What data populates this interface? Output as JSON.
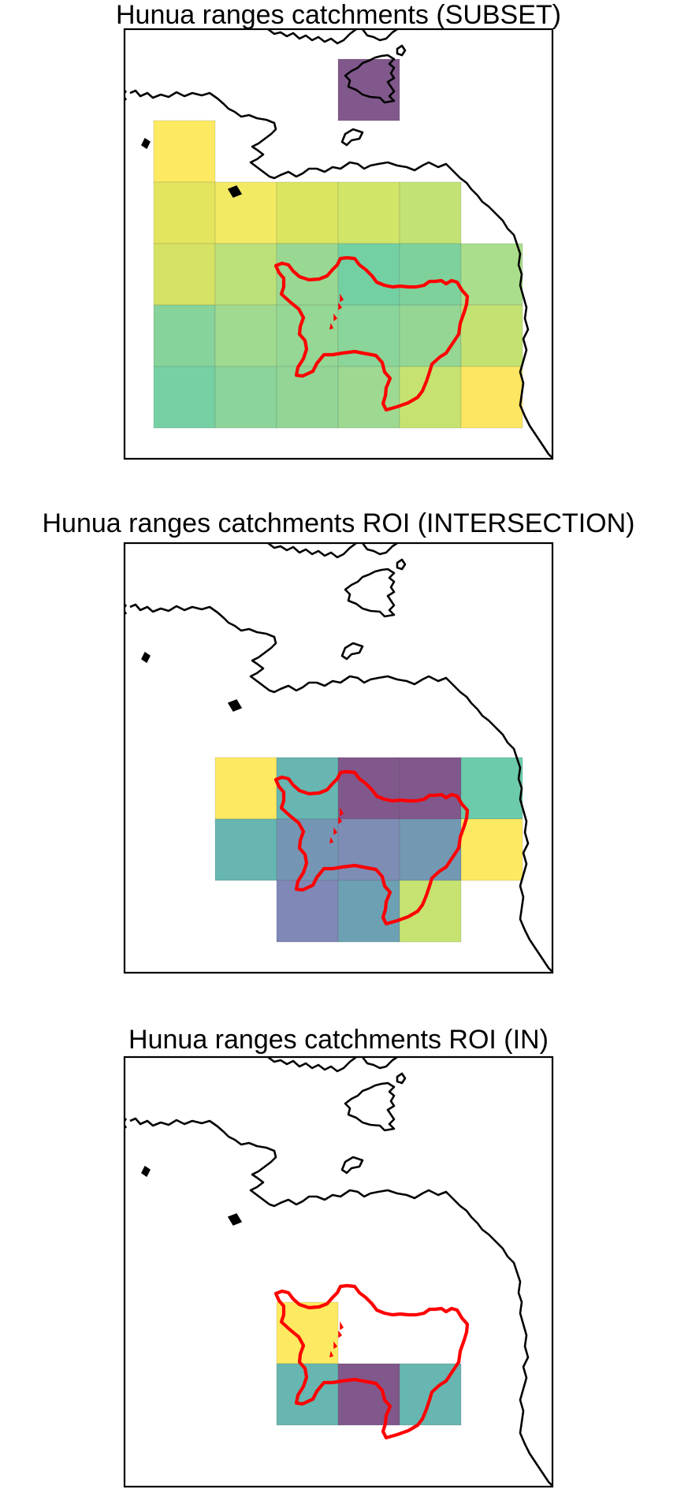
{
  "panels": [
    {
      "title": "Hunua ranges catchments (SUBSET)",
      "cells": [
        {
          "col": 3,
          "row": 0,
          "color": "#7a4f85"
        },
        {
          "col": 0,
          "row": 1,
          "color": "#fde95a"
        },
        {
          "col": 0,
          "row": 2,
          "color": "#e3e456"
        },
        {
          "col": 1,
          "row": 2,
          "color": "#f2e95c"
        },
        {
          "col": 2,
          "row": 2,
          "color": "#d9e45a"
        },
        {
          "col": 3,
          "row": 2,
          "color": "#cfe461"
        },
        {
          "col": 4,
          "row": 2,
          "color": "#bfe06e"
        },
        {
          "col": 0,
          "row": 3,
          "color": "#d4e05c"
        },
        {
          "col": 1,
          "row": 3,
          "color": "#b8de73"
        },
        {
          "col": 2,
          "row": 3,
          "color": "#94d68c"
        },
        {
          "col": 3,
          "row": 3,
          "color": "#6bcd9d"
        },
        {
          "col": 4,
          "row": 3,
          "color": "#78cf97"
        },
        {
          "col": 5,
          "row": 3,
          "color": "#a6dc86"
        },
        {
          "col": 0,
          "row": 4,
          "color": "#80d196"
        },
        {
          "col": 1,
          "row": 4,
          "color": "#9ad88a"
        },
        {
          "col": 2,
          "row": 4,
          "color": "#8fd58e"
        },
        {
          "col": 3,
          "row": 4,
          "color": "#84d393"
        },
        {
          "col": 4,
          "row": 4,
          "color": "#8fd48f"
        },
        {
          "col": 5,
          "row": 4,
          "color": "#c1e06a"
        },
        {
          "col": 0,
          "row": 5,
          "color": "#6fcd9f"
        },
        {
          "col": 1,
          "row": 5,
          "color": "#85d295"
        },
        {
          "col": 2,
          "row": 5,
          "color": "#8cd391"
        },
        {
          "col": 3,
          "row": 5,
          "color": "#99d78b"
        },
        {
          "col": 4,
          "row": 5,
          "color": "#c3e169"
        },
        {
          "col": 5,
          "row": 5,
          "color": "#fde55a"
        }
      ]
    },
    {
      "title": "Hunua ranges catchments ROI (INTERSECTION)",
      "cells": [
        {
          "col": 1,
          "row": 3,
          "color": "#fde95a"
        },
        {
          "col": 2,
          "row": 3,
          "color": "#5fb2ad"
        },
        {
          "col": 3,
          "row": 3,
          "color": "#7a4f85"
        },
        {
          "col": 4,
          "row": 3,
          "color": "#7a4f85"
        },
        {
          "col": 5,
          "row": 3,
          "color": "#64c8a6"
        },
        {
          "col": 1,
          "row": 4,
          "color": "#5fb2ad"
        },
        {
          "col": 2,
          "row": 4,
          "color": "#6e8fb0"
        },
        {
          "col": 3,
          "row": 4,
          "color": "#7687b0"
        },
        {
          "col": 4,
          "row": 4,
          "color": "#6a92ae"
        },
        {
          "col": 5,
          "row": 4,
          "color": "#fde95a"
        },
        {
          "col": 2,
          "row": 5,
          "color": "#7882b2"
        },
        {
          "col": 3,
          "row": 5,
          "color": "#649caf"
        },
        {
          "col": 4,
          "row": 5,
          "color": "#c3e169"
        }
      ]
    },
    {
      "title": "Hunua ranges catchments ROI (IN)",
      "cells": [
        {
          "col": 2,
          "row": 3.5,
          "color": "#fde95a"
        },
        {
          "col": 2,
          "row": 4.5,
          "color": "#5fb2ad"
        },
        {
          "col": 3,
          "row": 4.5,
          "color": "#7a4f85"
        },
        {
          "col": 4,
          "row": 4.5,
          "color": "#5fb2ad"
        }
      ]
    }
  ]
}
